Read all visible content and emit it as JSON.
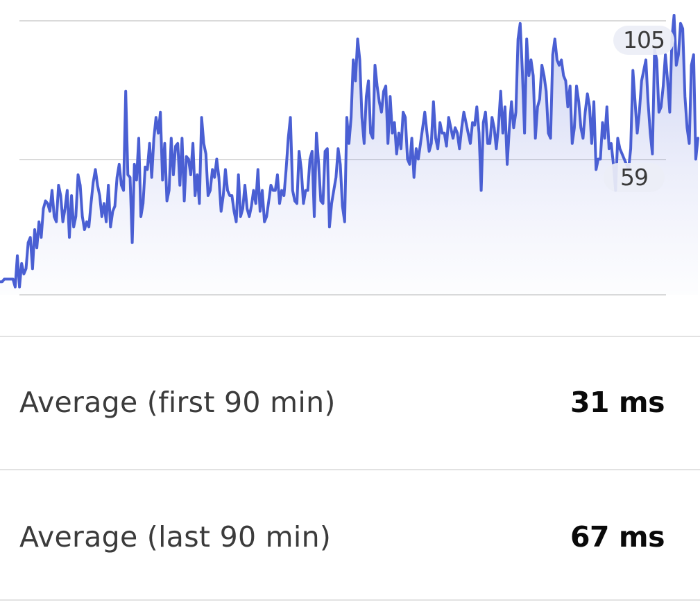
{
  "chart_data": {
    "type": "area",
    "unit": "ms",
    "ylim": [
      0,
      105
    ],
    "y_ticks": [
      "105",
      "59"
    ],
    "grid": true,
    "colors": {
      "line": "#4a5fd3",
      "grid": "#dadada"
    },
    "values": [
      5,
      5,
      6,
      6,
      6,
      6,
      6,
      3,
      15,
      3,
      12,
      8,
      10,
      20,
      22,
      10,
      25,
      18,
      28,
      22,
      33,
      36,
      35,
      32,
      40,
      30,
      28,
      42,
      38,
      28,
      33,
      40,
      22,
      38,
      26,
      30,
      46,
      42,
      30,
      25,
      28,
      26,
      35,
      43,
      48,
      42,
      38,
      30,
      35,
      28,
      42,
      26,
      32,
      34,
      45,
      50,
      42,
      40,
      78,
      46,
      45,
      20,
      50,
      44,
      60,
      30,
      35,
      49,
      48,
      58,
      45,
      60,
      68,
      62,
      70,
      44,
      58,
      36,
      40,
      60,
      46,
      57,
      58,
      42,
      60,
      36,
      53,
      52,
      46,
      58,
      38,
      46,
      35,
      68,
      58,
      54,
      38,
      40,
      48,
      45,
      52,
      45,
      32,
      38,
      48,
      40,
      38,
      38,
      32,
      28,
      46,
      30,
      33,
      42,
      33,
      30,
      34,
      40,
      35,
      48,
      32,
      40,
      28,
      30,
      36,
      42,
      40,
      40,
      46,
      35,
      40,
      38,
      48,
      60,
      68,
      40,
      36,
      35,
      55,
      48,
      35,
      40,
      40,
      52,
      55,
      30,
      62,
      50,
      36,
      35,
      55,
      56,
      26,
      35,
      40,
      45,
      56,
      50,
      34,
      28,
      68,
      58,
      68,
      90,
      82,
      98,
      90,
      68,
      58,
      76,
      82,
      62,
      60,
      88,
      80,
      74,
      70,
      78,
      80,
      58,
      76,
      62,
      66,
      54,
      62,
      56,
      70,
      68,
      52,
      50,
      60,
      45,
      56,
      52,
      58,
      64,
      70,
      62,
      55,
      58,
      74,
      60,
      56,
      66,
      62,
      62,
      57,
      68,
      64,
      60,
      64,
      62,
      56,
      64,
      70,
      66,
      62,
      58,
      66,
      65,
      72,
      62,
      40,
      66,
      70,
      58,
      58,
      68,
      64,
      56,
      65,
      78,
      62,
      72,
      50,
      64,
      74,
      64,
      70,
      98,
      104,
      86,
      62,
      98,
      84,
      90,
      84,
      60,
      72,
      75,
      88,
      84,
      78,
      62,
      60,
      92,
      98,
      90,
      88,
      90,
      84,
      82,
      72,
      80,
      58,
      64,
      80,
      74,
      64,
      60,
      70,
      77,
      72,
      58,
      74,
      48,
      52,
      52,
      66,
      60,
      72,
      56,
      58,
      50,
      40,
      60,
      56,
      54,
      52,
      50,
      48,
      56,
      86,
      74,
      62,
      70,
      82,
      86,
      90,
      74,
      62,
      54,
      94,
      90,
      70,
      72,
      80,
      92,
      82,
      70,
      98,
      110,
      88,
      92,
      104,
      102,
      76,
      64,
      58,
      88,
      92,
      52,
      60
    ]
  }
}
